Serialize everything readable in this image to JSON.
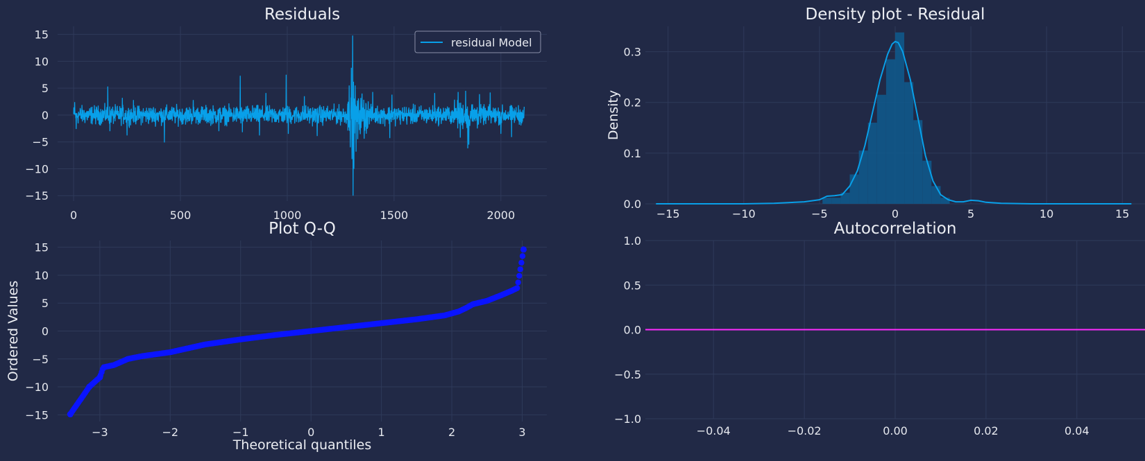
{
  "colors": {
    "background": "#212946",
    "grid": "#2f3a5a",
    "residual_line": "#08a0e9",
    "qq_points": "#0a14ff",
    "acf_line": "#ff2bff",
    "hist_bars": "#0e5a8e"
  },
  "chart_data": [
    {
      "id": "residuals",
      "type": "line",
      "title": "Residuals",
      "xlabel": "",
      "ylabel": "",
      "xlim": [
        -75,
        2215
      ],
      "ylim": [
        -16,
        16.5
      ],
      "xticks": [
        0,
        500,
        1000,
        1500,
        2000
      ],
      "yticks": [
        15,
        10,
        5,
        0,
        -5,
        -10,
        -15
      ],
      "grid": true,
      "legend_position": "top-right",
      "series": [
        {
          "name": "residual Model",
          "n_points": 2110,
          "baseline_amplitude": 1.2,
          "spikes": [
            {
              "x": 5,
              "y": 2.4
            },
            {
              "x": 12,
              "y": -2.6
            },
            {
              "x": 160,
              "y": 5.3
            },
            {
              "x": 170,
              "y": -3.0
            },
            {
              "x": 228,
              "y": 3.2
            },
            {
              "x": 250,
              "y": -3.8
            },
            {
              "x": 280,
              "y": 2.8
            },
            {
              "x": 425,
              "y": -5.1
            },
            {
              "x": 560,
              "y": 2.8
            },
            {
              "x": 680,
              "y": -3.0
            },
            {
              "x": 780,
              "y": 7.3
            },
            {
              "x": 790,
              "y": -3.2
            },
            {
              "x": 870,
              "y": -3.8
            },
            {
              "x": 900,
              "y": 4.1
            },
            {
              "x": 995,
              "y": 7.5
            },
            {
              "x": 1005,
              "y": -3.5
            },
            {
              "x": 1080,
              "y": 3.5
            },
            {
              "x": 1140,
              "y": -3.9
            },
            {
              "x": 1290,
              "y": 5.5
            },
            {
              "x": 1295,
              "y": -6.0
            },
            {
              "x": 1300,
              "y": 8.8
            },
            {
              "x": 1303,
              "y": -8.2
            },
            {
              "x": 1306,
              "y": 14.8
            },
            {
              "x": 1308,
              "y": -15.0
            },
            {
              "x": 1310,
              "y": 6.2
            },
            {
              "x": 1312,
              "y": -10.0
            },
            {
              "x": 1318,
              "y": 5.5
            },
            {
              "x": 1322,
              "y": -6.8
            },
            {
              "x": 1330,
              "y": -4.5
            },
            {
              "x": 1350,
              "y": 4.0
            },
            {
              "x": 1360,
              "y": -4.4
            },
            {
              "x": 1400,
              "y": 4.3
            },
            {
              "x": 1480,
              "y": -4.3
            },
            {
              "x": 1490,
              "y": 3.8
            },
            {
              "x": 1690,
              "y": 4.1
            },
            {
              "x": 1800,
              "y": 4.3
            },
            {
              "x": 1810,
              "y": -4.2
            },
            {
              "x": 1835,
              "y": 4.5
            },
            {
              "x": 1845,
              "y": -6.2
            },
            {
              "x": 1850,
              "y": -5.5
            },
            {
              "x": 1900,
              "y": 3.9
            },
            {
              "x": 1950,
              "y": 4.2
            },
            {
              "x": 2000,
              "y": -3.5
            },
            {
              "x": 2050,
              "y": -4.1
            }
          ]
        }
      ]
    },
    {
      "id": "density",
      "type": "bar",
      "title": "Density plot - Residual",
      "xlabel": "",
      "ylabel": "Density",
      "xlim": [
        -16.5,
        16.5
      ],
      "ylim": [
        0,
        0.35
      ],
      "xticks": [
        -15,
        -10,
        -5,
        0,
        5,
        10,
        15
      ],
      "yticks": [
        0.0,
        0.1,
        0.2,
        0.3
      ],
      "grid": true,
      "histogram": {
        "bin_width": 0.6,
        "bins": [
          {
            "x0": -4.8,
            "v": 0.012
          },
          {
            "x0": -4.2,
            "v": 0.012
          },
          {
            "x0": -3.6,
            "v": 0.022
          },
          {
            "x0": -3.0,
            "v": 0.058
          },
          {
            "x0": -2.4,
            "v": 0.105
          },
          {
            "x0": -1.8,
            "v": 0.16
          },
          {
            "x0": -1.2,
            "v": 0.215
          },
          {
            "x0": -0.6,
            "v": 0.285
          },
          {
            "x0": 0.0,
            "v": 0.338
          },
          {
            "x0": 0.6,
            "v": 0.24
          },
          {
            "x0": 1.2,
            "v": 0.165
          },
          {
            "x0": 1.8,
            "v": 0.085
          },
          {
            "x0": 2.4,
            "v": 0.035
          },
          {
            "x0": 3.0,
            "v": 0.012
          }
        ]
      },
      "kde": {
        "x": [
          -15.8,
          -10,
          -8,
          -6,
          -5,
          -4.5,
          -4,
          -3.5,
          -3,
          -2.5,
          -2,
          -1.5,
          -1,
          -0.5,
          -0.2,
          0,
          0.2,
          0.5,
          1,
          1.5,
          2,
          2.5,
          3,
          3.5,
          4,
          4.5,
          5,
          5.5,
          6,
          7,
          9,
          15.6
        ],
        "y": [
          0.0,
          0.0,
          0.001,
          0.004,
          0.008,
          0.015,
          0.016,
          0.018,
          0.035,
          0.065,
          0.115,
          0.18,
          0.245,
          0.295,
          0.315,
          0.32,
          0.318,
          0.3,
          0.245,
          0.17,
          0.095,
          0.045,
          0.018,
          0.008,
          0.004,
          0.004,
          0.007,
          0.006,
          0.003,
          0.001,
          0.0,
          0.0
        ]
      }
    },
    {
      "id": "qq",
      "type": "scatter",
      "title": "Plot Q-Q",
      "xlabel": "Theoretical quantiles",
      "ylabel": "Ordered Values",
      "xlim": [
        -3.6,
        3.35
      ],
      "ylim": [
        -16.2,
        16.2
      ],
      "xticks": [
        -3,
        -2,
        -1,
        0,
        1,
        2,
        3
      ],
      "yticks": [
        15,
        10,
        5,
        0,
        -5,
        -10,
        -15
      ],
      "grid": true,
      "series": [
        {
          "name": "",
          "curve_x": [
            -3.42,
            -3.15,
            -3.0,
            -2.95,
            -2.8,
            -2.6,
            -2.4,
            -2.0,
            -1.5,
            -1.0,
            -0.5,
            0,
            0.5,
            1.0,
            1.5,
            1.9,
            2.1,
            2.2,
            2.3,
            2.5,
            2.7,
            2.85,
            2.93,
            3.02
          ],
          "curve_y": [
            -14.9,
            -10.0,
            -8.3,
            -6.5,
            -6.1,
            -5.0,
            -4.5,
            -3.8,
            -2.4,
            -1.5,
            -0.7,
            0.0,
            0.7,
            1.4,
            2.1,
            2.8,
            3.5,
            4.1,
            4.8,
            5.4,
            6.4,
            7.2,
            7.7,
            14.6
          ],
          "n_points": 420
        }
      ]
    },
    {
      "id": "acf",
      "type": "line",
      "title": "Autocorrelation",
      "xlabel": "",
      "ylabel": "",
      "xlim": [
        -0.055,
        0.055
      ],
      "ylim": [
        -1.0,
        1.0
      ],
      "xticks": [
        -0.04,
        -0.02,
        0.0,
        0.02,
        0.04
      ],
      "xtick_labels": [
        "−0.04",
        "−0.02",
        "0.00",
        "0.02",
        "0.04"
      ],
      "yticks": [
        1.0,
        0.5,
        0.0,
        -0.5,
        -1.0
      ],
      "ytick_labels": [
        "1.0",
        "0.5",
        "0.0",
        "−0.5",
        "−1.0"
      ],
      "grid": true,
      "series": [
        {
          "name": "",
          "x": [
            -0.055,
            0.055
          ],
          "y": [
            0.0,
            0.0
          ]
        }
      ]
    }
  ]
}
